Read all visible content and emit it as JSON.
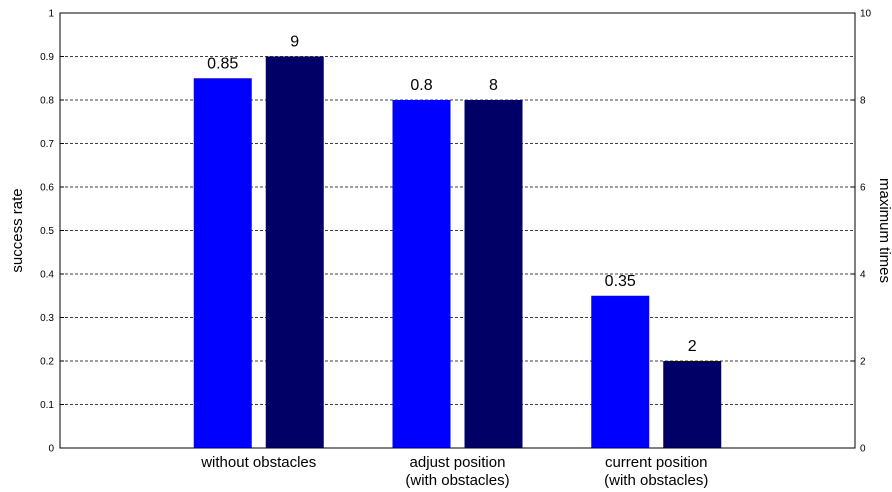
{
  "chart_data": {
    "type": "bar",
    "categories": [
      [
        "without obstacles"
      ],
      [
        "adjust position",
        "(with obstacles)"
      ],
      [
        "current position",
        "(with obstacles)"
      ]
    ],
    "series": [
      {
        "axis": "left",
        "color": "#0000ff",
        "values": [
          0.85,
          0.8,
          0.35
        ],
        "labels": [
          "0.85",
          "0.8",
          "0.35"
        ]
      },
      {
        "axis": "right",
        "color": "#000066",
        "values": [
          9,
          8,
          2
        ],
        "labels": [
          "9",
          "8",
          "2"
        ]
      }
    ],
    "ylabel_left": "success rate",
    "ylabel_right": "maximum times",
    "ylim_left": [
      0,
      1
    ],
    "ylim_right": [
      0,
      10
    ],
    "yticks_left": [
      "0",
      "0.1",
      "0.2",
      "0.3",
      "0.4",
      "0.5",
      "0.6",
      "0.7",
      "0.8",
      "0.9",
      "1"
    ],
    "yticks_right": [
      "0",
      "2",
      "4",
      "6",
      "8",
      "10"
    ],
    "grid": "horizontal dashed"
  }
}
